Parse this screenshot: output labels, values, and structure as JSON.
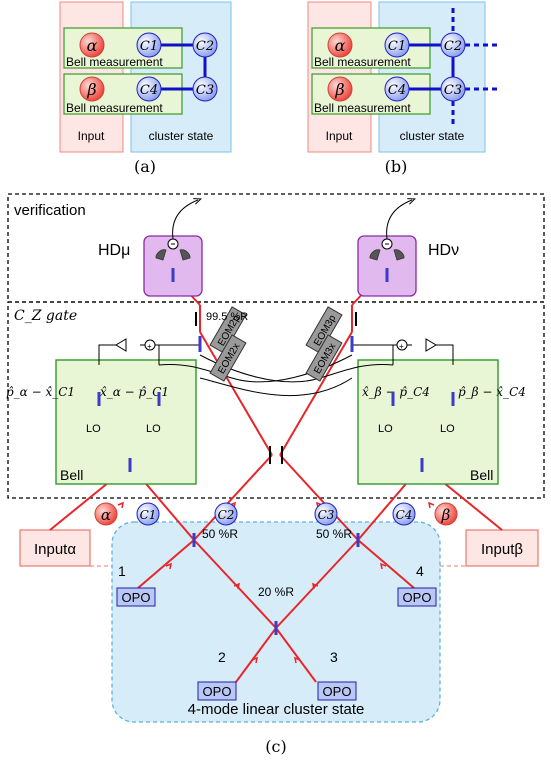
{
  "panel_a": {
    "alpha": "α",
    "beta": "β",
    "bell1": "Bell measurement",
    "bell2": "Bell measurement",
    "c1": "C1",
    "c2": "C2",
    "c3": "C3",
    "c4": "C4",
    "input": "Input",
    "cluster": "cluster state",
    "caption": "(a)"
  },
  "panel_b": {
    "alpha": "α",
    "beta": "β",
    "bell1": "Bell measurement",
    "bell2": "Bell measurement",
    "c1": "C1",
    "c2": "C2",
    "c3": "C3",
    "c4": "C4",
    "input": "Input",
    "cluster": "cluster state",
    "caption": "(b)"
  },
  "panel_c": {
    "verification": "verification",
    "hd_mu": "HDμ",
    "hd_nu": "HDν",
    "cz_gate": "C_Z gate",
    "reflect_995": "99.5 %R",
    "eom_2p": "EOM2p",
    "eom_2x": "EOM2x",
    "eom_3p": "EOM3p",
    "eom_3x": "EOM3x",
    "formula_1": "p̂_α − x̂_C1",
    "formula_2": "x̂_α − p̂_C1",
    "formula_3": "x̂_β − p̂_C4",
    "formula_4": "p̂_β − x̂_C4",
    "lo": "LO",
    "bell_left": "Bell",
    "bell_right": "Bell",
    "alpha": "α",
    "beta": "β",
    "c1": "C1",
    "c2": "C2",
    "c3": "C3",
    "c4": "C4",
    "input_alpha": "Inputα",
    "input_beta": "Inputβ",
    "r50_left": "50 %R",
    "r50_right": "50 %R",
    "r20": "20 %R",
    "n1": "1",
    "n2": "2",
    "n3": "3",
    "n4": "4",
    "opo": "OPO",
    "cluster_label": "4-mode linear cluster state",
    "caption": "(c)"
  },
  "colors": {
    "laser": "#e8262a",
    "cluster_fill": "#d6ecf8",
    "input_fill": "#fde6e3",
    "bell_fill": "#e9f6d6",
    "hd_fill": "#e2b9ee",
    "node_blue": "#b9c7f7",
    "node_red": "#f46a63",
    "bs_blue": "#3b3bc8"
  }
}
